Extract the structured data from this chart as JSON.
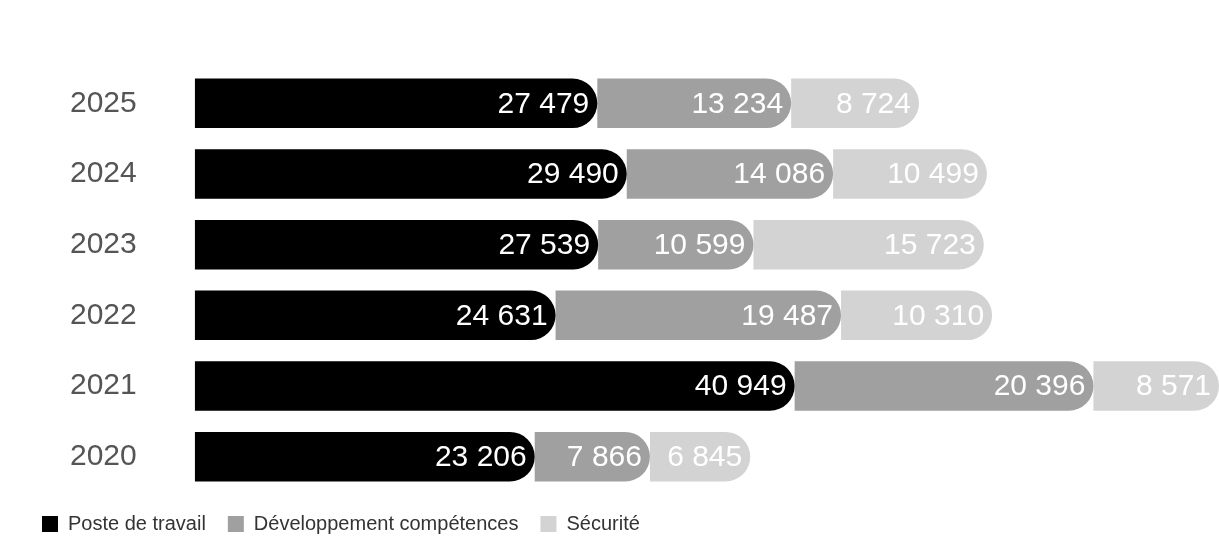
{
  "chart_data": {
    "type": "bar",
    "orientation": "horizontal",
    "stacked": true,
    "categories": [
      "2025",
      "2024",
      "2023",
      "2022",
      "2021",
      "2020"
    ],
    "series": [
      {
        "name": "Poste de travail",
        "color": "#000000",
        "values": [
          27479,
          29490,
          27539,
          24631,
          40949,
          23206
        ],
        "value_labels": [
          "27 479",
          "29 490",
          "27 539",
          "24 631",
          "40 949",
          "23 206"
        ]
      },
      {
        "name": "Développement compétences",
        "color": "#a0a0a0",
        "values": [
          13234,
          14086,
          10599,
          19487,
          20396,
          7866
        ],
        "value_labels": [
          "13 234",
          "14 086",
          "10 599",
          "19 487",
          "20 396",
          "7 866"
        ]
      },
      {
        "name": "Sécurité",
        "color": "#d3d3d3",
        "values": [
          8724,
          10499,
          15723,
          10310,
          8571,
          6845
        ],
        "value_labels": [
          "8 724",
          "10 499",
          "15 723",
          "10 310",
          "8 571",
          "6 845"
        ]
      }
    ],
    "tick_labels": "y",
    "grid": false,
    "legend": "bottom"
  }
}
